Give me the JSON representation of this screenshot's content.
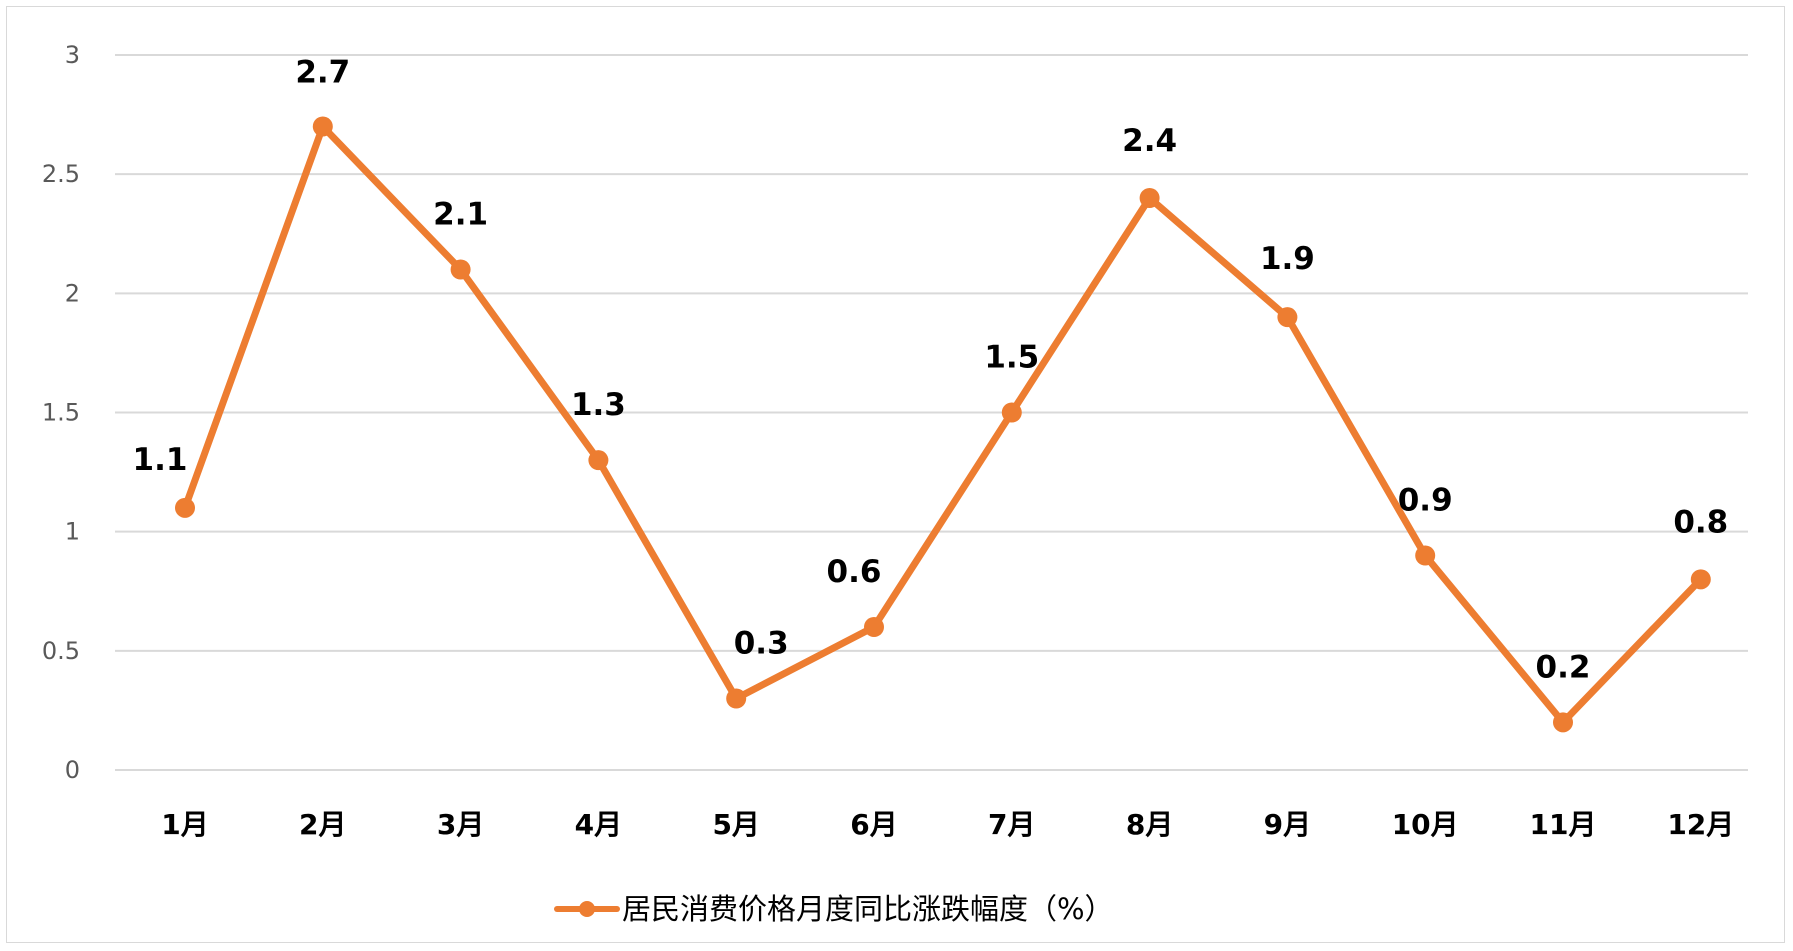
{
  "chart_data": {
    "type": "line",
    "categories": [
      "1月",
      "2月",
      "3月",
      "4月",
      "5月",
      "6月",
      "7月",
      "8月",
      "9月",
      "10月",
      "11月",
      "12月"
    ],
    "series": [
      {
        "name": "居民消费价格月度同比涨跌幅度（%）",
        "values": [
          1.1,
          2.7,
          2.1,
          1.3,
          0.3,
          0.6,
          1.5,
          2.4,
          1.9,
          0.9,
          0.2,
          0.8
        ],
        "color": "#ed7d31"
      }
    ],
    "y_ticks": [
      "0",
      "0.5",
      "1",
      "1.5",
      "2",
      "2.5",
      "3"
    ],
    "ylim": [
      0,
      3
    ],
    "data_labels": [
      "1.1",
      "2.7",
      "2.1",
      "1.3",
      "0.3",
      "0.6",
      "1.5",
      "2.4",
      "1.9",
      "0.9",
      "0.2",
      "0.8"
    ],
    "title": "",
    "xlabel": "",
    "ylabel": "",
    "grid": true,
    "gridline_color": "#d9d9d9",
    "legend_position": "bottom"
  }
}
